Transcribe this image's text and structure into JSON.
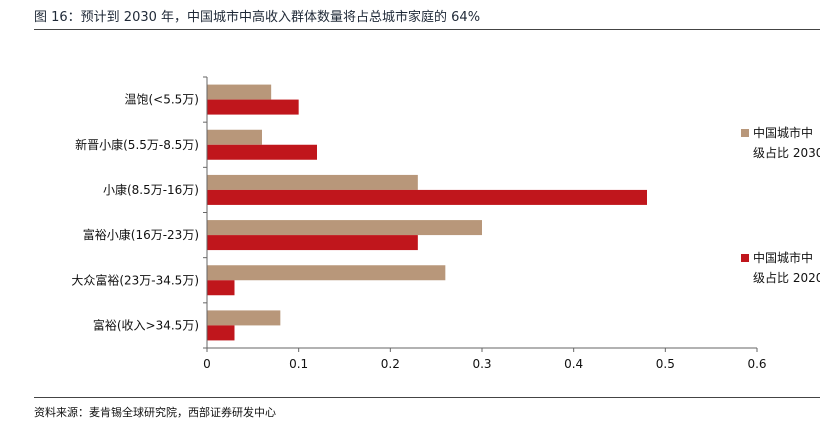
{
  "page": {
    "title": "图 16：预计到 2030 年，中国城市中高收入群体数量将占总城市家庭的 64%",
    "source": "资料来源：麦肯锡全球研究院，西部证券研发中心"
  },
  "chart_data": {
    "type": "bar",
    "orientation": "horizontal",
    "categories": [
      "温饱(<5.5万)",
      "新晋小康(5.5万-8.5万)",
      "小康(8.5万-16万)",
      "富裕小康(16万-23万)",
      "大众富裕(23万-34.5万)",
      "富裕(收入>34.5万)"
    ],
    "series": [
      {
        "name_line1": "中国城市中",
        "name_line2": "级占比 2030",
        "color": "#B8977A",
        "values": [
          0.07,
          0.06,
          0.23,
          0.3,
          0.26,
          0.08
        ]
      },
      {
        "name_line1": "中国城市中",
        "name_line2": "级占比 2020",
        "color": "#C0161C",
        "values": [
          0.1,
          0.12,
          0.48,
          0.23,
          0.03,
          0.03
        ]
      }
    ],
    "xlim": [
      0,
      0.6
    ],
    "xticks": [
      "0",
      "0.1",
      "0.2",
      "0.3",
      "0.4",
      "0.5",
      "0.6"
    ],
    "grid": false,
    "legend_position": "right"
  }
}
